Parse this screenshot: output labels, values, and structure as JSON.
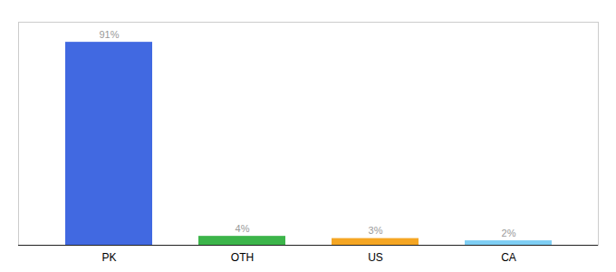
{
  "chart_data": {
    "type": "bar",
    "categories": [
      "PK",
      "OTH",
      "US",
      "CA"
    ],
    "values": [
      91,
      4,
      3,
      2
    ],
    "value_labels": [
      "91%",
      "4%",
      "3%",
      "2%"
    ],
    "colors": [
      "#4169e1",
      "#3cb54a",
      "#f5a623",
      "#7ecef4"
    ],
    "ylim": [
      0,
      100
    ],
    "data_labels": true,
    "tick_labels": "x"
  }
}
